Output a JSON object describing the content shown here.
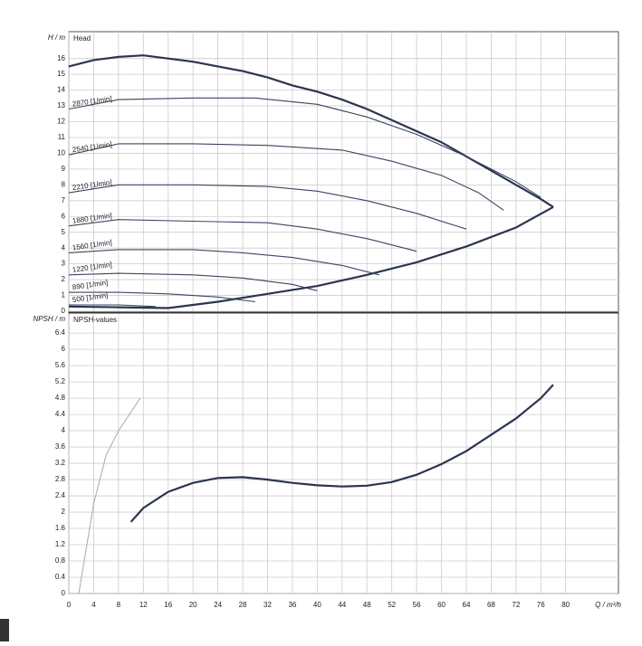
{
  "chart_data": [
    {
      "type": "line",
      "title": "Head",
      "y_label": "H / m",
      "xlim": [
        0,
        88.5
      ],
      "ylim": [
        0,
        17.7
      ],
      "yticks": [
        0,
        1,
        2,
        3,
        4,
        5,
        6,
        7,
        8,
        9,
        10,
        11,
        12,
        13,
        14,
        15,
        16
      ],
      "grid": true,
      "series": [
        {
          "color": "#2b3550",
          "x": [
            0,
            4,
            8,
            12,
            16,
            20,
            24,
            28,
            32,
            36,
            40,
            44,
            48,
            52,
            56,
            60,
            64,
            68,
            72,
            76,
            78
          ],
          "values": [
            15.5,
            15.9,
            16.1,
            16.2,
            16.0,
            15.8,
            15.5,
            15.2,
            14.8,
            14.3,
            13.9,
            13.4,
            12.8,
            12.1,
            11.4,
            10.7,
            9.8,
            8.9,
            8.0,
            7.1,
            6.6
          ]
        },
        {
          "color": "#2b3550",
          "x": [
            0,
            8,
            16,
            24,
            32,
            40,
            48,
            56,
            64,
            72,
            78
          ],
          "values": [
            0.3,
            0.25,
            0.2,
            0.6,
            1.1,
            1.6,
            2.3,
            3.1,
            4.1,
            5.3,
            6.6
          ]
        },
        {
          "name": "2870 [1/min]",
          "color": "#3a4560",
          "x": [
            0,
            8,
            20,
            30,
            40,
            48,
            56,
            64,
            72,
            76
          ],
          "values": [
            12.8,
            13.4,
            13.5,
            13.5,
            13.1,
            12.3,
            11.2,
            9.8,
            8.2,
            7.2
          ]
        },
        {
          "name": "2540 [1/min]",
          "color": "#3a4560",
          "x": [
            0,
            8,
            20,
            32,
            44,
            52,
            60,
            66,
            70
          ],
          "values": [
            9.9,
            10.6,
            10.6,
            10.5,
            10.2,
            9.5,
            8.6,
            7.5,
            6.4
          ]
        },
        {
          "name": "2210 [1/min]",
          "color": "#3a4560",
          "x": [
            0,
            8,
            20,
            32,
            40,
            48,
            56,
            64
          ],
          "values": [
            7.5,
            8.0,
            8.0,
            7.9,
            7.6,
            7.0,
            6.2,
            5.2
          ]
        },
        {
          "name": "1880 [1/min]",
          "color": "#3a4560",
          "x": [
            0,
            8,
            20,
            32,
            40,
            48,
            56
          ],
          "values": [
            5.4,
            5.8,
            5.7,
            5.6,
            5.2,
            4.6,
            3.8
          ]
        },
        {
          "name": "1560 [1/min]",
          "color": "#3a4560",
          "x": [
            0,
            8,
            20,
            28,
            36,
            44,
            50
          ],
          "values": [
            3.7,
            3.9,
            3.9,
            3.7,
            3.4,
            2.9,
            2.3
          ]
        },
        {
          "name": "1220 [1/min]",
          "color": "#3a4560",
          "x": [
            0,
            8,
            20,
            28,
            36,
            40
          ],
          "values": [
            2.3,
            2.4,
            2.3,
            2.1,
            1.7,
            1.3
          ]
        },
        {
          "name": "890 [1/min]",
          "color": "#3a4560",
          "x": [
            0,
            8,
            16,
            24,
            30
          ],
          "values": [
            1.2,
            1.2,
            1.1,
            0.9,
            0.6
          ]
        },
        {
          "name": "500 [1/min]",
          "color": "#3a4560",
          "x": [
            0,
            8,
            14
          ],
          "values": [
            0.4,
            0.4,
            0.3
          ]
        }
      ]
    },
    {
      "type": "line",
      "title": "NPSH-values",
      "y_label": "NPSH / m",
      "x_label": "Q / m³/h",
      "xlim": [
        0,
        88.5
      ],
      "ylim": [
        0,
        6.87
      ],
      "xticks": [
        0,
        4,
        8,
        12,
        16,
        20,
        24,
        28,
        32,
        36,
        40,
        44,
        48,
        52,
        56,
        60,
        64,
        68,
        72,
        76,
        80
      ],
      "yticks": [
        0,
        0.4,
        0.8,
        1.2,
        1.6,
        2,
        2.4,
        2.8,
        3.2,
        3.6,
        4,
        4.4,
        4.8,
        5.2,
        5.6,
        6,
        6.4
      ],
      "grid": true,
      "series": [
        {
          "color": "#2b3550",
          "x": [
            10,
            12,
            16,
            20,
            24,
            28,
            32,
            36,
            40,
            44,
            48,
            52,
            56,
            60,
            64,
            68,
            72,
            76,
            78
          ],
          "values": [
            1.76,
            2.1,
            2.5,
            2.72,
            2.84,
            2.86,
            2.8,
            2.72,
            2.66,
            2.63,
            2.65,
            2.74,
            2.92,
            3.18,
            3.5,
            3.9,
            4.3,
            4.8,
            5.13
          ]
        },
        {
          "color": "#b0b0b0",
          "x": [
            1.6,
            4,
            6,
            8,
            11.5
          ],
          "values": [
            0,
            2.2,
            3.4,
            4.0,
            4.8
          ]
        }
      ]
    }
  ]
}
